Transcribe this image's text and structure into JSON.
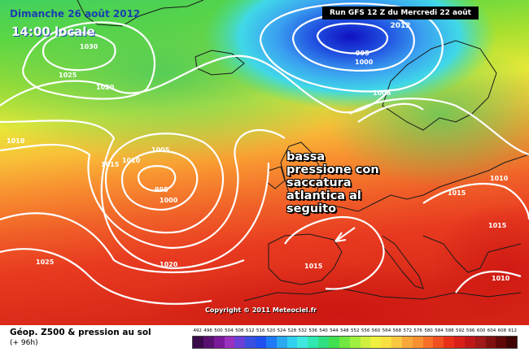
{
  "header": {
    "date": "Dimanche 26 août 2012",
    "time": "14:00 locale",
    "run": "Run GFS 12 Z du Mercredi 22 août 2012"
  },
  "annotation": {
    "lines": [
      "bassa",
      "pressione con",
      "saccatura",
      "atlantica al",
      "seguito"
    ]
  },
  "copyright": "Copyright © 2011 Meteociel.fr",
  "legend": {
    "title": "Géop. Z500 & pression au sol",
    "subtitle": "(+ 96h)",
    "scale_labels": [
      "492",
      "496",
      "500",
      "504",
      "508",
      "512",
      "516",
      "520",
      "524",
      "528",
      "532",
      "536",
      "540",
      "544",
      "548",
      "552",
      "556",
      "560",
      "564",
      "568",
      "572",
      "576",
      "580",
      "584",
      "588",
      "592",
      "596",
      "600",
      "604",
      "608",
      "612"
    ],
    "scale_colors": [
      "#3a0a4a",
      "#5a1070",
      "#7a1a9a",
      "#9a30c0",
      "#6a40d8",
      "#3a50e0",
      "#2050f0",
      "#1e7af5",
      "#2aa8f0",
      "#30d0f0",
      "#40e8e0",
      "#30e8b0",
      "#30e080",
      "#40e050",
      "#70e840",
      "#a0f040",
      "#d0f040",
      "#f0f040",
      "#f8e040",
      "#f8c840",
      "#f8a838",
      "#f89030",
      "#f87028",
      "#f05020",
      "#e83018",
      "#d82018",
      "#c01818",
      "#a01818",
      "#801010",
      "#600808",
      "#400404"
    ]
  },
  "isobars": [
    {
      "label": "1030"
    },
    {
      "label": "1025"
    },
    {
      "label": "1020"
    },
    {
      "label": "1010"
    },
    {
      "label": "1015"
    },
    {
      "label": "1010"
    },
    {
      "label": "1005"
    },
    {
      "label": "995"
    },
    {
      "label": "1000"
    },
    {
      "label": "1025"
    },
    {
      "label": "1020"
    },
    {
      "label": "995"
    },
    {
      "label": "1000"
    },
    {
      "label": "1005"
    },
    {
      "label": "1015"
    },
    {
      "label": "1010"
    },
    {
      "label": "1015"
    },
    {
      "label": "1010"
    },
    {
      "label": "1015"
    }
  ],
  "colors": {
    "arrow": "#ffffff",
    "isobar": "#ffffff",
    "coast": "#1a1a1a"
  }
}
